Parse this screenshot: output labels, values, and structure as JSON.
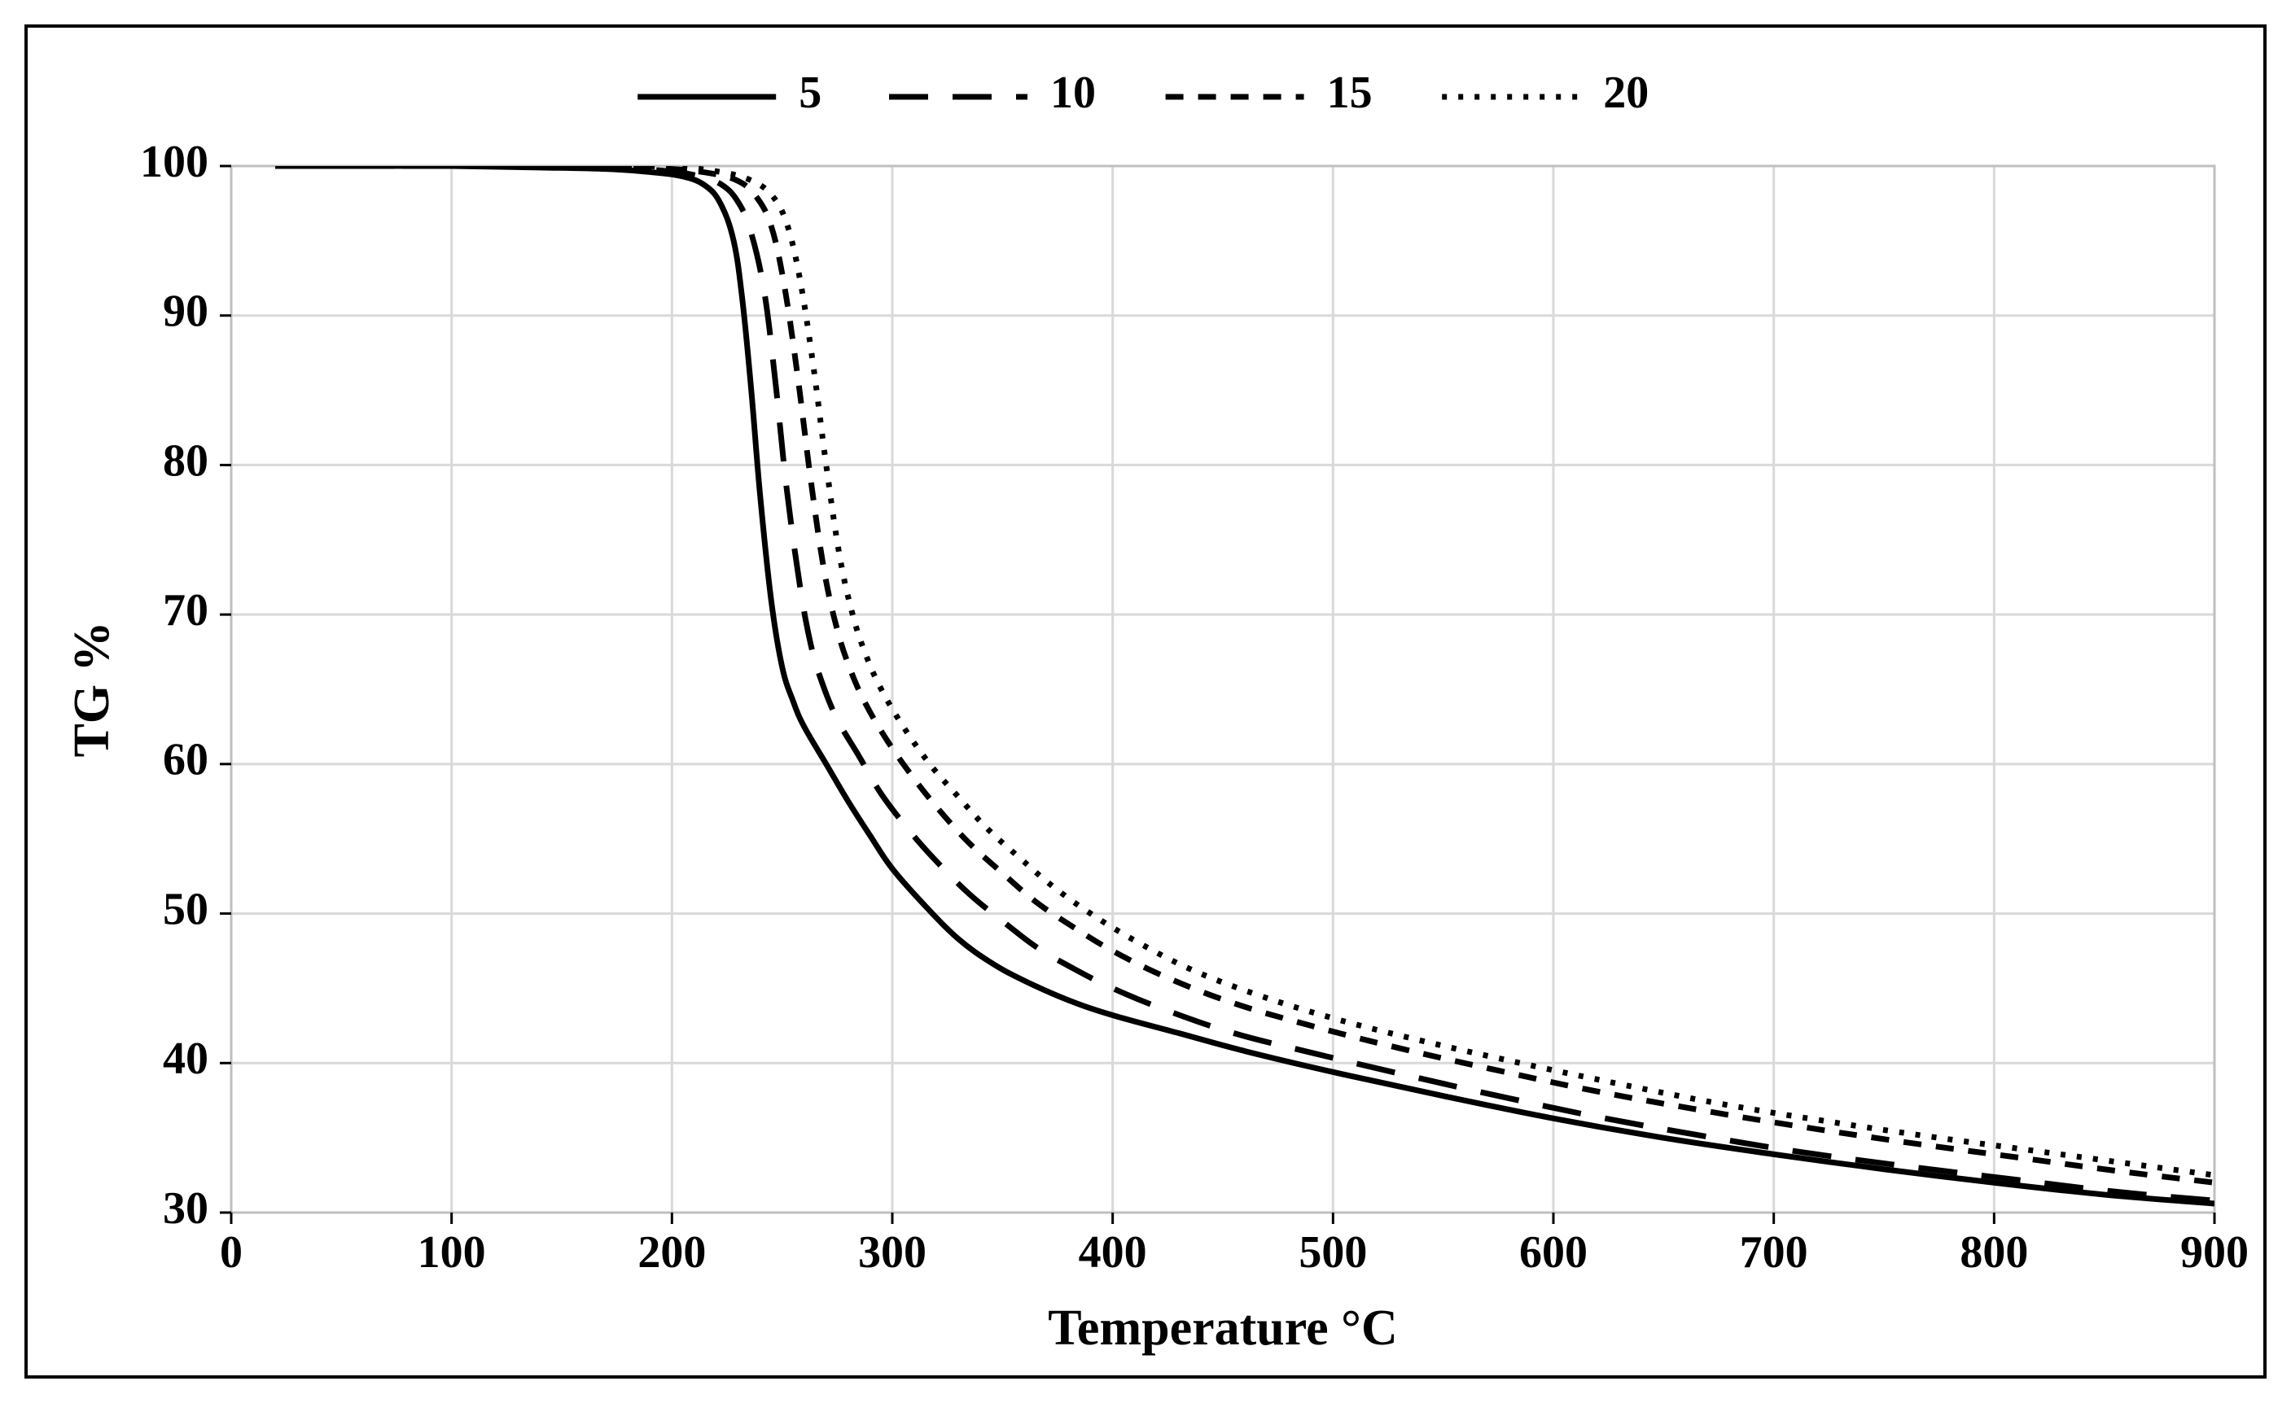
{
  "chart": {
    "type": "line",
    "outer_width": 2814,
    "outer_height": 1724,
    "xlabel": "Temperature °C",
    "ylabel": "TG %",
    "xlabel_fontsize": 62,
    "ylabel_fontsize": 62,
    "tick_fontsize": 56,
    "legend_fontsize": 56,
    "background_color": "#ffffff",
    "frame_border_color": "#000000",
    "grid_color": "#d9d9d9",
    "plot_border_color": "#bfbfbf",
    "xlim": [
      0,
      900
    ],
    "ylim": [
      30,
      100
    ],
    "xtick_step": 100,
    "ytick_step": 10,
    "grid": true,
    "tick_len": 14,
    "line_width": 7,
    "line_color": "#000000",
    "legend": {
      "items": [
        {
          "label": "5",
          "dash": null,
          "sample_w": 170
        },
        {
          "label": "10",
          "dash": "48 30",
          "sample_w": 170
        },
        {
          "label": "15",
          "dash": "22 18",
          "sample_w": 170
        },
        {
          "label": "20",
          "dash": "6 14",
          "sample_w": 170
        }
      ],
      "gap": 80,
      "pad_after_line": 28
    },
    "series": [
      {
        "name": "5",
        "dash": null,
        "points": [
          [
            20,
            100.0
          ],
          [
            60,
            100.0
          ],
          [
            100,
            100.0
          ],
          [
            140,
            99.9
          ],
          [
            170,
            99.8
          ],
          [
            190,
            99.6
          ],
          [
            205,
            99.3
          ],
          [
            215,
            98.7
          ],
          [
            222,
            97.5
          ],
          [
            228,
            95.0
          ],
          [
            232,
            91.0
          ],
          [
            236,
            85.0
          ],
          [
            240,
            78.0
          ],
          [
            245,
            71.0
          ],
          [
            250,
            66.5
          ],
          [
            255,
            64.2
          ],
          [
            260,
            62.5
          ],
          [
            270,
            60.0
          ],
          [
            280,
            57.5
          ],
          [
            290,
            55.2
          ],
          [
            300,
            53.0
          ],
          [
            315,
            50.5
          ],
          [
            330,
            48.3
          ],
          [
            345,
            46.7
          ],
          [
            360,
            45.5
          ],
          [
            380,
            44.2
          ],
          [
            400,
            43.2
          ],
          [
            430,
            42.0
          ],
          [
            460,
            40.8
          ],
          [
            500,
            39.4
          ],
          [
            550,
            37.8
          ],
          [
            600,
            36.3
          ],
          [
            650,
            35.0
          ],
          [
            700,
            33.9
          ],
          [
            750,
            32.9
          ],
          [
            800,
            32.0
          ],
          [
            850,
            31.2
          ],
          [
            900,
            30.6
          ]
        ]
      },
      {
        "name": "10",
        "dash": "48 30",
        "points": [
          [
            20,
            100.0
          ],
          [
            60,
            100.0
          ],
          [
            100,
            100.0
          ],
          [
            140,
            100.0
          ],
          [
            170,
            99.9
          ],
          [
            195,
            99.7
          ],
          [
            210,
            99.4
          ],
          [
            222,
            98.8
          ],
          [
            230,
            97.6
          ],
          [
            236,
            95.5
          ],
          [
            242,
            91.5
          ],
          [
            247,
            85.5
          ],
          [
            252,
            78.5
          ],
          [
            258,
            72.0
          ],
          [
            263,
            68.0
          ],
          [
            268,
            65.5
          ],
          [
            275,
            63.0
          ],
          [
            285,
            60.5
          ],
          [
            295,
            58.0
          ],
          [
            308,
            55.5
          ],
          [
            320,
            53.5
          ],
          [
            335,
            51.3
          ],
          [
            350,
            49.5
          ],
          [
            365,
            47.8
          ],
          [
            380,
            46.5
          ],
          [
            400,
            45.0
          ],
          [
            425,
            43.5
          ],
          [
            455,
            42.0
          ],
          [
            490,
            40.7
          ],
          [
            530,
            39.3
          ],
          [
            575,
            37.8
          ],
          [
            620,
            36.4
          ],
          [
            665,
            35.2
          ],
          [
            710,
            34.1
          ],
          [
            760,
            33.1
          ],
          [
            810,
            32.2
          ],
          [
            855,
            31.4
          ],
          [
            900,
            30.8
          ]
        ]
      },
      {
        "name": "15",
        "dash": "22 18",
        "points": [
          [
            20,
            100.0
          ],
          [
            60,
            100.0
          ],
          [
            100,
            100.0
          ],
          [
            140,
            100.0
          ],
          [
            175,
            99.9
          ],
          [
            200,
            99.8
          ],
          [
            218,
            99.5
          ],
          [
            230,
            99.0
          ],
          [
            238,
            98.0
          ],
          [
            245,
            96.0
          ],
          [
            251,
            92.0
          ],
          [
            257,
            86.0
          ],
          [
            263,
            79.0
          ],
          [
            269,
            73.0
          ],
          [
            275,
            69.0
          ],
          [
            281,
            66.3
          ],
          [
            288,
            64.0
          ],
          [
            298,
            61.5
          ],
          [
            310,
            59.0
          ],
          [
            322,
            56.8
          ],
          [
            335,
            54.7
          ],
          [
            350,
            52.7
          ],
          [
            365,
            50.8
          ],
          [
            380,
            49.3
          ],
          [
            400,
            47.5
          ],
          [
            425,
            45.7
          ],
          [
            455,
            44.0
          ],
          [
            490,
            42.5
          ],
          [
            530,
            41.0
          ],
          [
            575,
            39.5
          ],
          [
            620,
            38.1
          ],
          [
            665,
            36.9
          ],
          [
            710,
            35.8
          ],
          [
            760,
            34.7
          ],
          [
            810,
            33.7
          ],
          [
            855,
            32.8
          ],
          [
            900,
            32.0
          ]
        ]
      },
      {
        "name": "20",
        "dash": "6 14",
        "points": [
          [
            20,
            100.0
          ],
          [
            60,
            100.0
          ],
          [
            100,
            100.0
          ],
          [
            140,
            100.0
          ],
          [
            180,
            100.0
          ],
          [
            205,
            99.9
          ],
          [
            222,
            99.6
          ],
          [
            235,
            99.1
          ],
          [
            245,
            98.1
          ],
          [
            252,
            96.2
          ],
          [
            258,
            92.5
          ],
          [
            264,
            86.8
          ],
          [
            270,
            80.0
          ],
          [
            276,
            74.0
          ],
          [
            282,
            70.0
          ],
          [
            288,
            67.3
          ],
          [
            295,
            65.0
          ],
          [
            305,
            62.5
          ],
          [
            317,
            60.0
          ],
          [
            330,
            57.8
          ],
          [
            343,
            55.7
          ],
          [
            358,
            53.7
          ],
          [
            373,
            51.8
          ],
          [
            390,
            50.0
          ],
          [
            410,
            48.2
          ],
          [
            435,
            46.3
          ],
          [
            465,
            44.6
          ],
          [
            500,
            43.0
          ],
          [
            540,
            41.5
          ],
          [
            585,
            40.0
          ],
          [
            630,
            38.6
          ],
          [
            675,
            37.3
          ],
          [
            720,
            36.2
          ],
          [
            770,
            35.1
          ],
          [
            820,
            34.1
          ],
          [
            865,
            33.2
          ],
          [
            900,
            32.5
          ]
        ]
      }
    ]
  }
}
